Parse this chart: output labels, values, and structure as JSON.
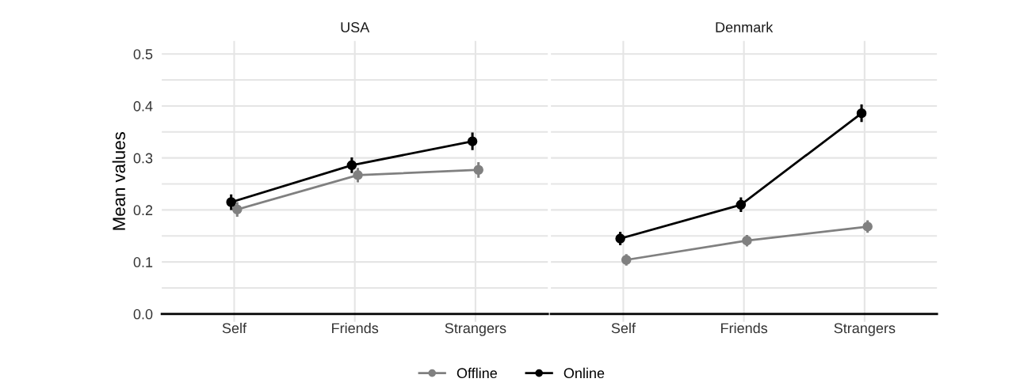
{
  "chart_data": [
    {
      "type": "line",
      "title": "USA",
      "ylabel": "Mean values",
      "categories": [
        "Self",
        "Friends",
        "Strangers"
      ],
      "ylim": [
        -0.015,
        0.525
      ],
      "yticks": [
        {
          "value": 0,
          "label": "0.0"
        },
        {
          "value": 0.05,
          "label": null
        },
        {
          "value": 0.1,
          "label": "0.1"
        },
        {
          "value": 0.15,
          "label": null
        },
        {
          "value": 0.2,
          "label": "0.2"
        },
        {
          "value": 0.25,
          "label": null
        },
        {
          "value": 0.3,
          "label": "0.3"
        },
        {
          "value": 0.35,
          "label": null
        },
        {
          "value": 0.4,
          "label": "0.4"
        },
        {
          "value": 0.45,
          "label": null
        },
        {
          "value": 0.5,
          "label": "0.5"
        }
      ],
      "grid": true,
      "legend": "bottom",
      "marker": "circle",
      "series": [
        {
          "name": "Offline",
          "color": "#808080",
          "values": [
            0.201,
            0.267,
            0.277
          ],
          "errors": [
            0.014,
            0.014,
            0.015
          ]
        },
        {
          "name": "Online",
          "color": "#000000",
          "values": [
            0.215,
            0.286,
            0.332
          ],
          "errors": [
            0.015,
            0.015,
            0.017
          ]
        }
      ]
    },
    {
      "type": "line",
      "title": "Denmark",
      "categories": [
        "Self",
        "Friends",
        "Strangers"
      ],
      "ylim": [
        -0.015,
        0.525
      ],
      "tick_labels": "x",
      "yticks": [
        0.0,
        {
          "value": 0.05,
          "label": null
        },
        0.1,
        {
          "value": 0.15,
          "label": null
        },
        0.2,
        {
          "value": 0.25,
          "label": null
        },
        0.3,
        {
          "value": 0.35,
          "label": null
        },
        0.4,
        {
          "value": 0.45,
          "label": null
        },
        0.5
      ],
      "grid": true,
      "marker": "circle",
      "series": [
        {
          "color": "#808080",
          "values": [
            0.104,
            0.141,
            0.168
          ],
          "errors": [
            0.011,
            0.011,
            0.012
          ]
        },
        {
          "color": "#000000",
          "values": [
            0.145,
            0.21,
            0.386
          ],
          "errors": [
            0.013,
            0.014,
            0.017
          ]
        }
      ]
    }
  ]
}
